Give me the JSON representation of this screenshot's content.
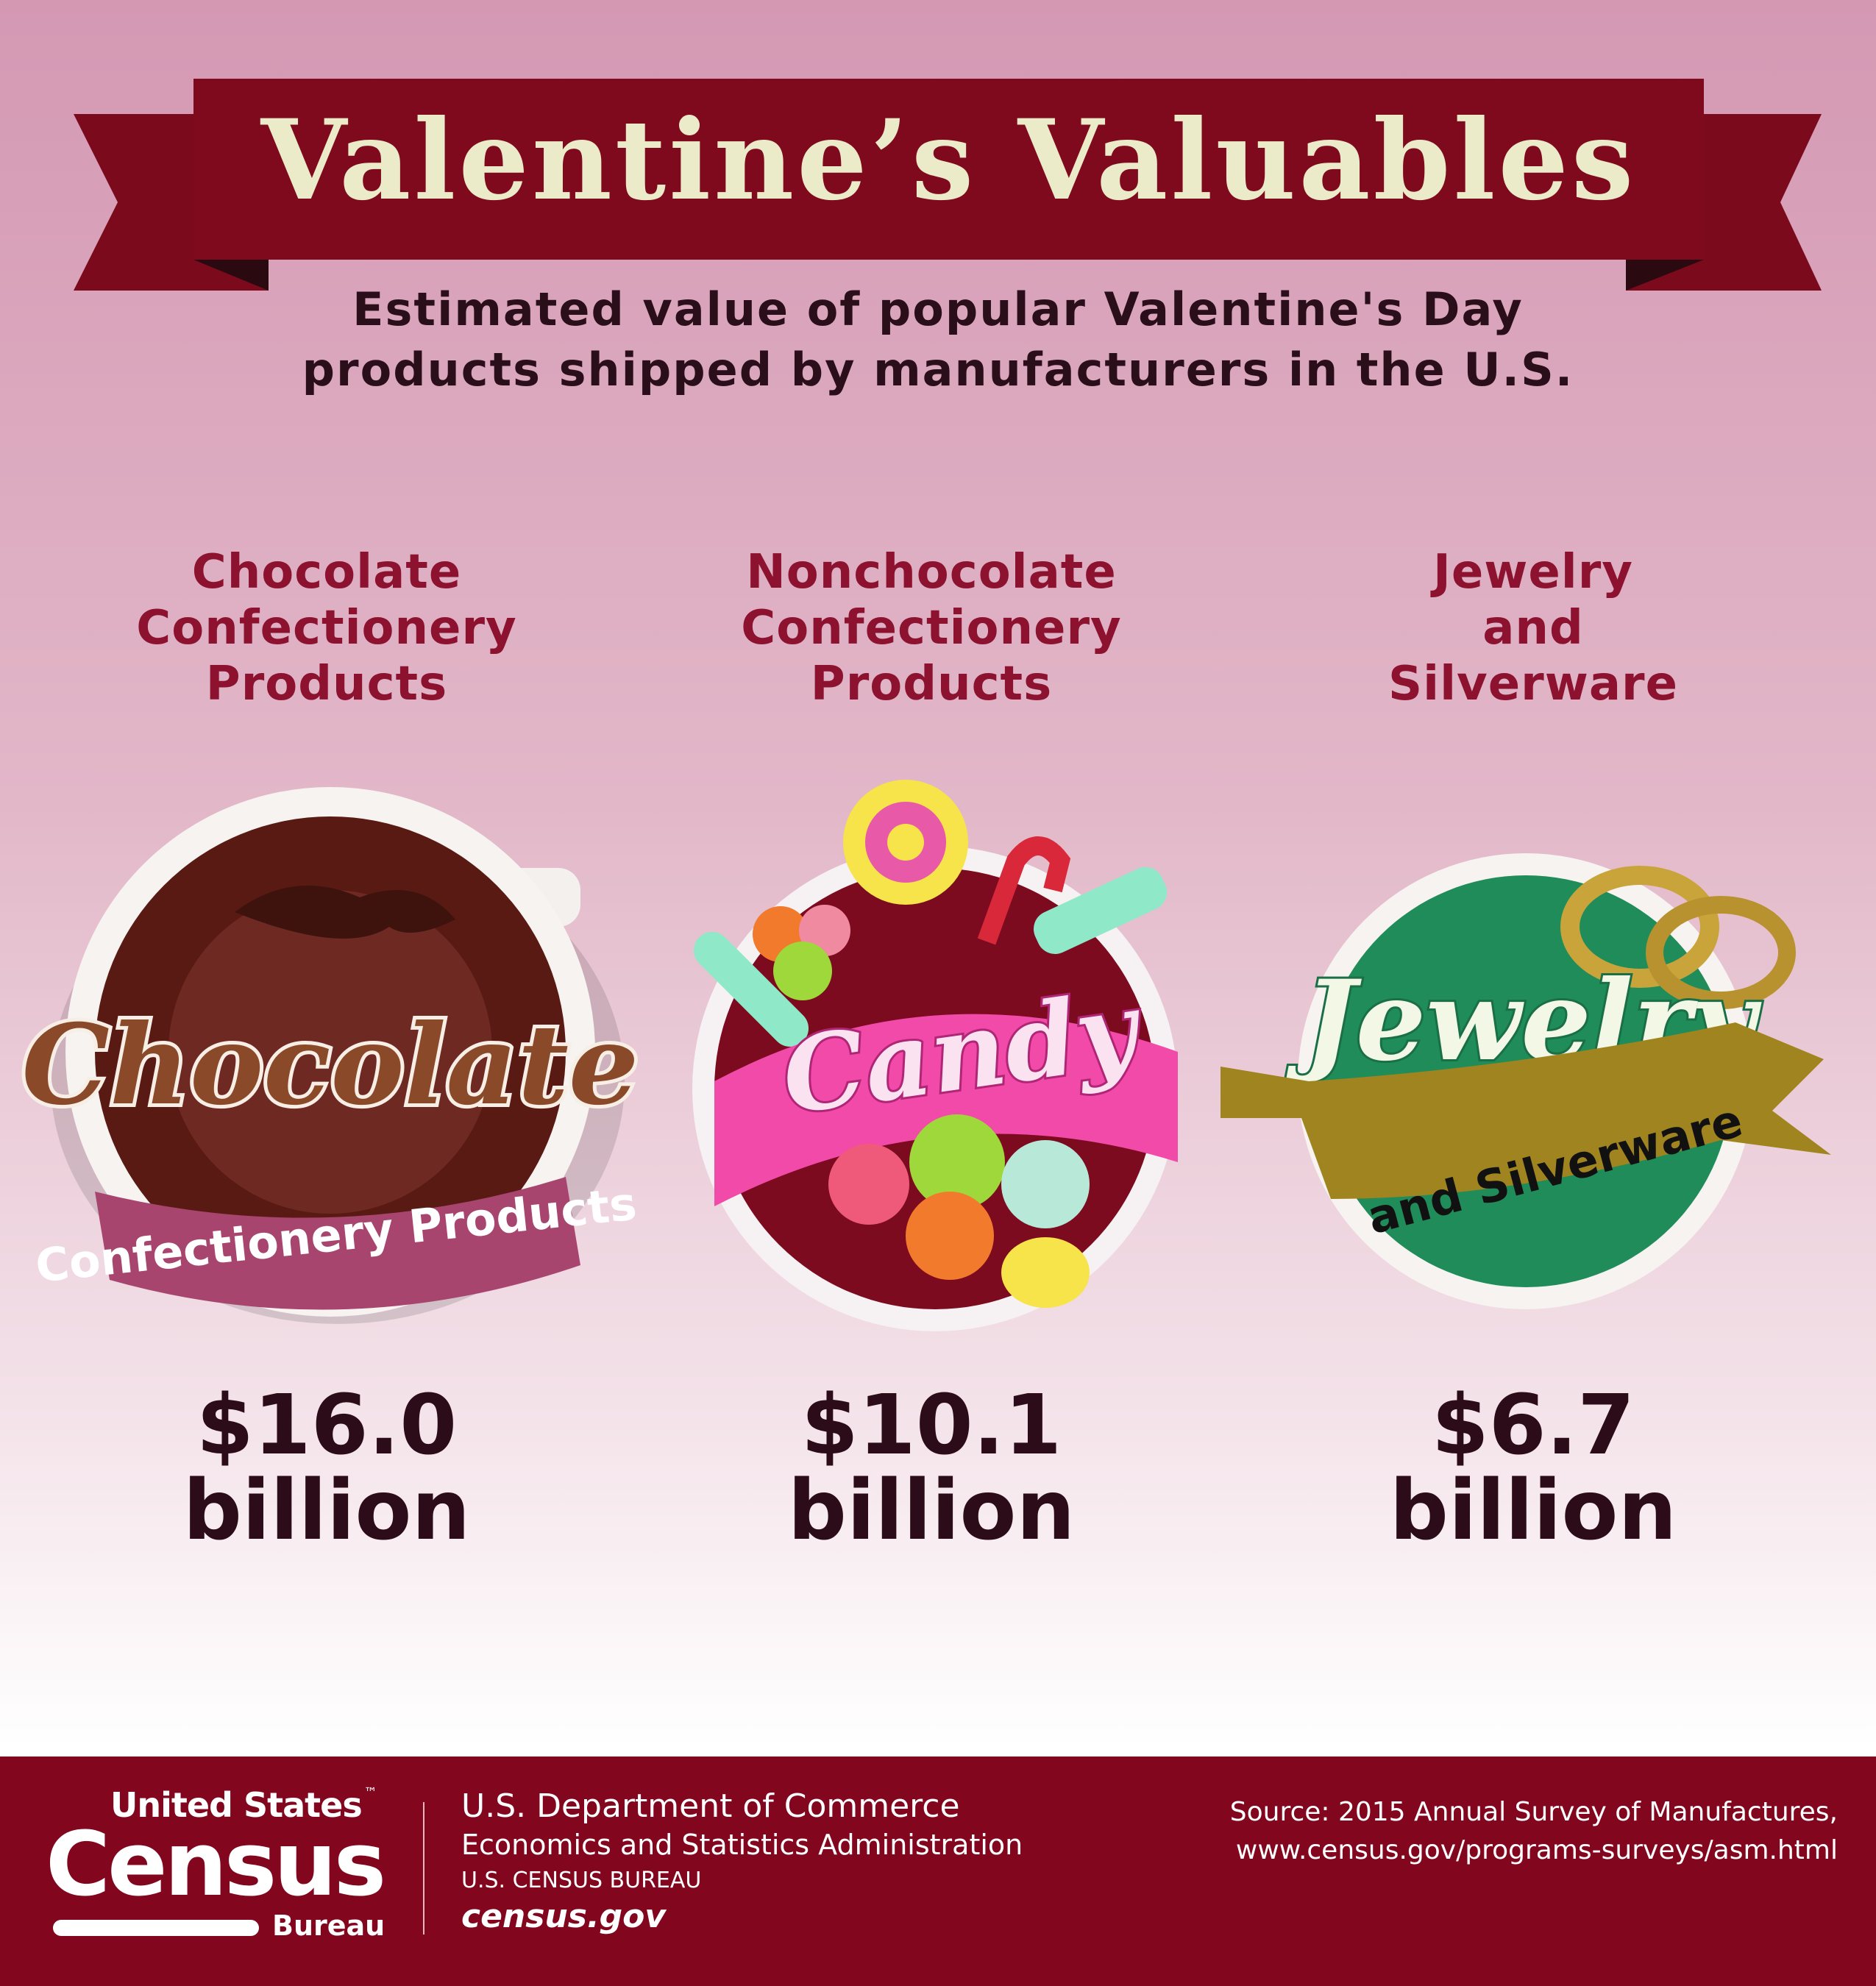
{
  "title": "Valentine’s Valuables",
  "subtitle": [
    "Estimated value of popular Valentine's Day",
    "products shipped by manufacturers in the U.S."
  ],
  "colors": {
    "banner": "#7f0a1e",
    "title_text": "#ecebc9",
    "heading": "#8c1230",
    "value": "#2b0c18",
    "footer": "#82061e"
  },
  "columns": [
    {
      "heading": [
        "Chocolate",
        "Confectionery",
        "Products"
      ],
      "value": "$16.0",
      "unit": "billion",
      "logo": {
        "main": "Chocolate",
        "ribbon": "Confectionery Products"
      },
      "icon": "chocolate-cup-icon"
    },
    {
      "heading": [
        "Nonchocolate",
        "Confectionery",
        "Products"
      ],
      "value": "$10.1",
      "unit": "billion",
      "logo": {
        "main": "Candy"
      },
      "icon": "candy-bowl-icon"
    },
    {
      "heading": [
        "Jewelry",
        "and",
        "Silverware"
      ],
      "value": "$6.7",
      "unit": "billion",
      "logo": {
        "main": "Jewelry",
        "ribbon": "and Silverware"
      },
      "icon": "rings-icon"
    }
  ],
  "footer": {
    "logo": {
      "line1": "United States",
      "line2": "Census",
      "line3": "Bureau",
      "tm": "™"
    },
    "agency": [
      "U.S. Department of Commerce",
      "Economics and Statistics Administration",
      "U.S. CENSUS BUREAU"
    ],
    "site": "census.gov",
    "source": [
      "Source: 2015 Annual Survey of Manufactures,",
      "www.census.gov/programs-surveys/asm.html"
    ]
  }
}
